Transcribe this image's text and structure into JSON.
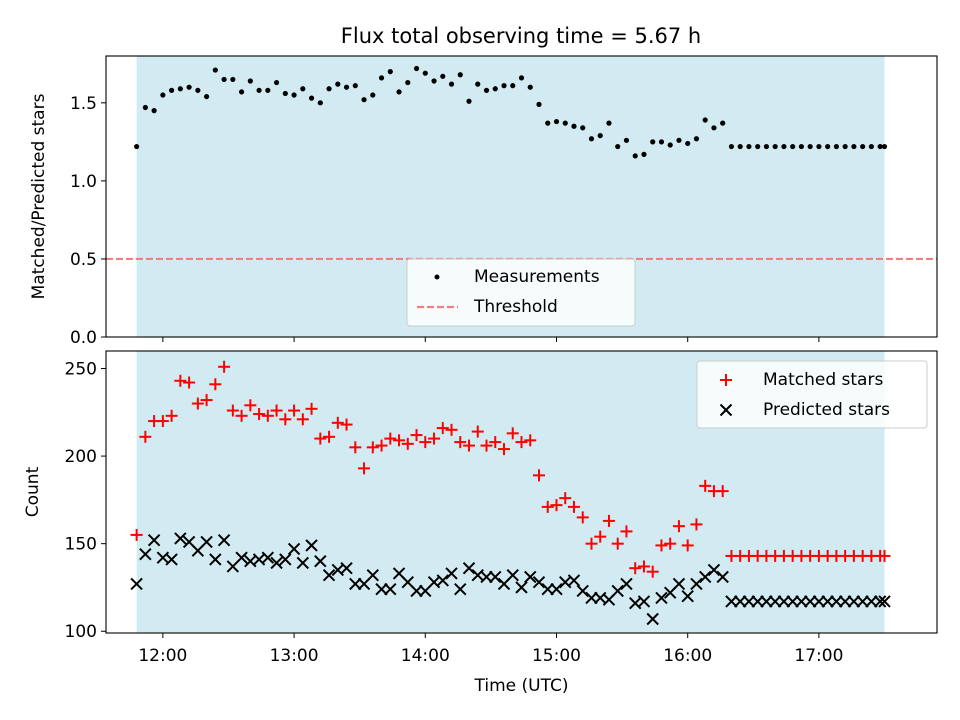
{
  "title": "Flux total observing time = 5.67 h",
  "colors": {
    "shade": "#add8e6",
    "measure": "#000000",
    "threshold": "#f08080",
    "matched": "#ff0000",
    "predicted": "#000000"
  },
  "chart_data": [
    {
      "type": "scatter",
      "ylabel": "Matched/Predicted stars",
      "xlim": [
        "11:34",
        "17:54"
      ],
      "ylim": [
        0,
        1.8
      ],
      "yticks": [
        0.0,
        0.5,
        1.0,
        1.5
      ],
      "ytick_labels": [
        "0.0",
        "0.5",
        "1.0",
        "1.5"
      ],
      "shaded_span": [
        "11:48",
        "17:30"
      ],
      "threshold": 0.5,
      "legend": {
        "position": "lower-center",
        "entries": [
          "Measurements",
          "Threshold"
        ]
      },
      "series": [
        {
          "name": "Measurements",
          "x": [
            "11:48",
            "11:52",
            "11:56",
            "12:00",
            "12:04",
            "12:08",
            "12:12",
            "12:16",
            "12:20",
            "12:24",
            "12:28",
            "12:32",
            "12:36",
            "12:40",
            "12:44",
            "12:48",
            "12:52",
            "12:56",
            "13:00",
            "13:04",
            "13:08",
            "13:12",
            "13:16",
            "13:20",
            "13:24",
            "13:28",
            "13:32",
            "13:36",
            "13:40",
            "13:44",
            "13:48",
            "13:52",
            "13:56",
            "14:00",
            "14:04",
            "14:08",
            "14:12",
            "14:16",
            "14:20",
            "14:24",
            "14:28",
            "14:32",
            "14:36",
            "14:40",
            "14:44",
            "14:48",
            "14:52",
            "14:56",
            "15:00",
            "15:04",
            "15:08",
            "15:12",
            "15:16",
            "15:20",
            "15:24",
            "15:28",
            "15:32",
            "15:36",
            "15:40",
            "15:44",
            "15:48",
            "15:52",
            "15:56",
            "16:00",
            "16:04",
            "16:08",
            "16:12",
            "16:16",
            "16:20",
            "16:24",
            "16:28",
            "16:32",
            "16:36",
            "16:40",
            "16:44",
            "16:48",
            "16:52",
            "16:56",
            "17:00",
            "17:04",
            "17:08",
            "17:12",
            "17:16",
            "17:20",
            "17:24",
            "17:28",
            "17:30"
          ],
          "y": [
            1.22,
            1.47,
            1.45,
            1.55,
            1.58,
            1.59,
            1.6,
            1.58,
            1.54,
            1.71,
            1.65,
            1.65,
            1.57,
            1.64,
            1.58,
            1.58,
            1.63,
            1.56,
            1.55,
            1.59,
            1.53,
            1.5,
            1.59,
            1.62,
            1.6,
            1.61,
            1.52,
            1.55,
            1.66,
            1.7,
            1.57,
            1.63,
            1.72,
            1.69,
            1.64,
            1.67,
            1.62,
            1.68,
            1.51,
            1.62,
            1.58,
            1.59,
            1.61,
            1.61,
            1.66,
            1.6,
            1.49,
            1.37,
            1.38,
            1.37,
            1.35,
            1.34,
            1.27,
            1.29,
            1.37,
            1.22,
            1.26,
            1.16,
            1.17,
            1.25,
            1.25,
            1.23,
            1.26,
            1.24,
            1.27,
            1.39,
            1.34,
            1.37,
            1.22,
            1.22,
            1.22,
            1.22,
            1.22,
            1.22,
            1.22,
            1.22,
            1.22,
            1.22,
            1.22,
            1.22,
            1.22,
            1.22,
            1.22,
            1.22,
            1.22,
            1.22,
            1.22
          ]
        }
      ]
    },
    {
      "type": "scatter",
      "xlabel": "Time (UTC)",
      "ylabel": "Count",
      "xlim": [
        "11:34",
        "17:54"
      ],
      "ylim": [
        99,
        260
      ],
      "yticks": [
        100,
        150,
        200,
        250
      ],
      "xtick_labels": [
        "12:00",
        "13:00",
        "14:00",
        "15:00",
        "16:00",
        "17:00"
      ],
      "shaded_span": [
        "11:48",
        "17:30"
      ],
      "legend": {
        "position": "upper-right",
        "entries": [
          "Matched stars",
          "Predicted stars"
        ]
      },
      "series": [
        {
          "name": "Matched stars",
          "x": [
            "11:48",
            "11:52",
            "11:56",
            "12:00",
            "12:04",
            "12:08",
            "12:12",
            "12:16",
            "12:20",
            "12:24",
            "12:28",
            "12:32",
            "12:36",
            "12:40",
            "12:44",
            "12:48",
            "12:52",
            "12:56",
            "13:00",
            "13:04",
            "13:08",
            "13:12",
            "13:16",
            "13:20",
            "13:24",
            "13:28",
            "13:32",
            "13:36",
            "13:40",
            "13:44",
            "13:48",
            "13:52",
            "13:56",
            "14:00",
            "14:04",
            "14:08",
            "14:12",
            "14:16",
            "14:20",
            "14:24",
            "14:28",
            "14:32",
            "14:36",
            "14:40",
            "14:44",
            "14:48",
            "14:52",
            "14:56",
            "15:00",
            "15:04",
            "15:08",
            "15:12",
            "15:16",
            "15:20",
            "15:24",
            "15:28",
            "15:32",
            "15:36",
            "15:40",
            "15:44",
            "15:48",
            "15:52",
            "15:56",
            "16:00",
            "16:04",
            "16:08",
            "16:12",
            "16:16",
            "16:20",
            "16:24",
            "16:28",
            "16:32",
            "16:36",
            "16:40",
            "16:44",
            "16:48",
            "16:52",
            "16:56",
            "17:00",
            "17:04",
            "17:08",
            "17:12",
            "17:16",
            "17:20",
            "17:24",
            "17:28",
            "17:30"
          ],
          "y": [
            155,
            211,
            220,
            220,
            223,
            243,
            242,
            230,
            232,
            241,
            251,
            226,
            223,
            229,
            224,
            223,
            226,
            221,
            226,
            221,
            227,
            210,
            211,
            219,
            218,
            205,
            193,
            205,
            206,
            210,
            209,
            207,
            212,
            208,
            210,
            216,
            215,
            208,
            206,
            214,
            206,
            208,
            204,
            213,
            208,
            209,
            189,
            171,
            172,
            176,
            171,
            165,
            150,
            154,
            163,
            150,
            157,
            136,
            137,
            134,
            149,
            150,
            160,
            149,
            161,
            183,
            180,
            180,
            143,
            143,
            143,
            143,
            143,
            143,
            143,
            143,
            143,
            143,
            143,
            143,
            143,
            143,
            143,
            143,
            143,
            143,
            143
          ]
        },
        {
          "name": "Predicted stars",
          "x": [
            "11:48",
            "11:52",
            "11:56",
            "12:00",
            "12:04",
            "12:08",
            "12:12",
            "12:16",
            "12:20",
            "12:24",
            "12:28",
            "12:32",
            "12:36",
            "12:40",
            "12:44",
            "12:48",
            "12:52",
            "12:56",
            "13:00",
            "13:04",
            "13:08",
            "13:12",
            "13:16",
            "13:20",
            "13:24",
            "13:28",
            "13:32",
            "13:36",
            "13:40",
            "13:44",
            "13:48",
            "13:52",
            "13:56",
            "14:00",
            "14:04",
            "14:08",
            "14:12",
            "14:16",
            "14:20",
            "14:24",
            "14:28",
            "14:32",
            "14:36",
            "14:40",
            "14:44",
            "14:48",
            "14:52",
            "14:56",
            "15:00",
            "15:04",
            "15:08",
            "15:12",
            "15:16",
            "15:20",
            "15:24",
            "15:28",
            "15:32",
            "15:36",
            "15:40",
            "15:44",
            "15:48",
            "15:52",
            "15:56",
            "16:00",
            "16:04",
            "16:08",
            "16:12",
            "16:16",
            "16:20",
            "16:24",
            "16:28",
            "16:32",
            "16:36",
            "16:40",
            "16:44",
            "16:48",
            "16:52",
            "16:56",
            "17:00",
            "17:04",
            "17:08",
            "17:12",
            "17:16",
            "17:20",
            "17:24",
            "17:28",
            "17:30"
          ],
          "y": [
            127,
            144,
            152,
            142,
            141,
            153,
            151,
            146,
            151,
            141,
            152,
            137,
            142,
            140,
            141,
            142,
            139,
            141,
            147,
            139,
            149,
            140,
            132,
            135,
            136,
            127,
            127,
            132,
            124,
            124,
            133,
            128,
            123,
            123,
            128,
            129,
            133,
            124,
            136,
            132,
            131,
            131,
            127,
            132,
            125,
            131,
            128,
            124,
            124,
            128,
            129,
            123,
            119,
            119,
            118,
            123,
            127,
            116,
            117,
            107,
            119,
            122,
            127,
            120,
            127,
            131,
            135,
            131,
            117,
            117,
            117,
            117,
            117,
            117,
            117,
            117,
            117,
            117,
            117,
            117,
            117,
            117,
            117,
            117,
            117,
            117,
            117
          ]
        }
      ]
    }
  ]
}
